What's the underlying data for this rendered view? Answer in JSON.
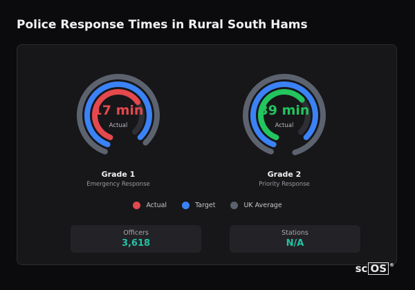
{
  "title": "Police Response Times in Rural South Hams",
  "colors": {
    "actual": "#e5484d",
    "target": "#3b82f6",
    "uk_average": "#5c636f",
    "grade2_actual": "#22c55e",
    "stat_value": "#22c3a5"
  },
  "gauges": [
    {
      "value_text": "17 min",
      "value_color": "#e5484d",
      "sub_label": "Actual",
      "title": "Grade 1",
      "subtitle": "Emergency Response",
      "actual_color": "#e5484d",
      "actual_fraction": 0.6,
      "target_fraction": 0.82,
      "uk_average_fraction": 0.82
    },
    {
      "value_text": "39 min",
      "value_color": "#22c55e",
      "sub_label": "Actual",
      "title": "Grade 2",
      "subtitle": "Priority Response",
      "actual_color": "#22c55e",
      "actual_fraction": 0.58,
      "target_fraction": 0.82,
      "uk_average_fraction": 0.9
    }
  ],
  "legend": [
    {
      "label": "Actual",
      "color": "#e5484d"
    },
    {
      "label": "Target",
      "color": "#3b82f6"
    },
    {
      "label": "UK Average",
      "color": "#5c636f"
    }
  ],
  "stats": [
    {
      "label": "Officers",
      "value": "3,618"
    },
    {
      "label": "Stations",
      "value": "N/A"
    }
  ],
  "logo": {
    "prefix": "sc",
    "boxed": "OS",
    "reg": "®"
  }
}
